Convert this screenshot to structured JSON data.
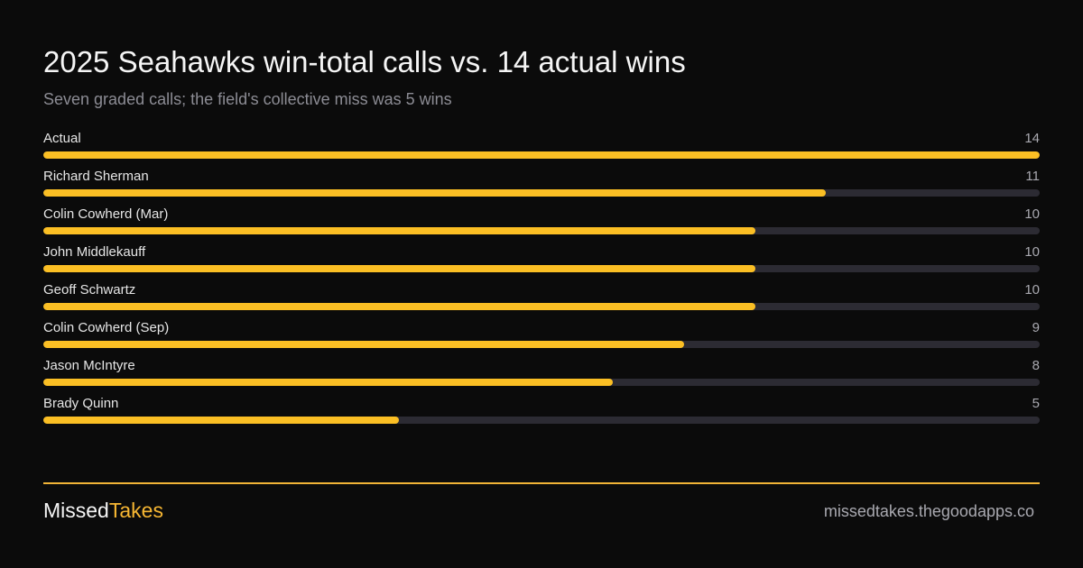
{
  "chart_data": {
    "type": "bar",
    "orientation": "horizontal",
    "title": "2025 Seahawks win-total calls vs. 14 actual wins",
    "subtitle": "Seven graded calls; the field's collective miss was 5 wins",
    "categories": [
      "Actual",
      "Richard Sherman",
      "Colin Cowherd (Mar)",
      "John Middlekauff",
      "Geoff Schwartz",
      "Colin Cowherd (Sep)",
      "Jason McIntyre",
      "Brady Quinn"
    ],
    "values": [
      14,
      11,
      10,
      10,
      10,
      9,
      8,
      5
    ],
    "xlim": [
      0,
      14
    ],
    "grid": false,
    "colors": {
      "bar": "#fbbf24",
      "track": "#2c2b33"
    }
  },
  "brand": {
    "part1": "Missed",
    "part2": "Takes",
    "accent": "#f7b733"
  },
  "footer": {
    "site": "missedtakes.thegoodapps.co"
  }
}
